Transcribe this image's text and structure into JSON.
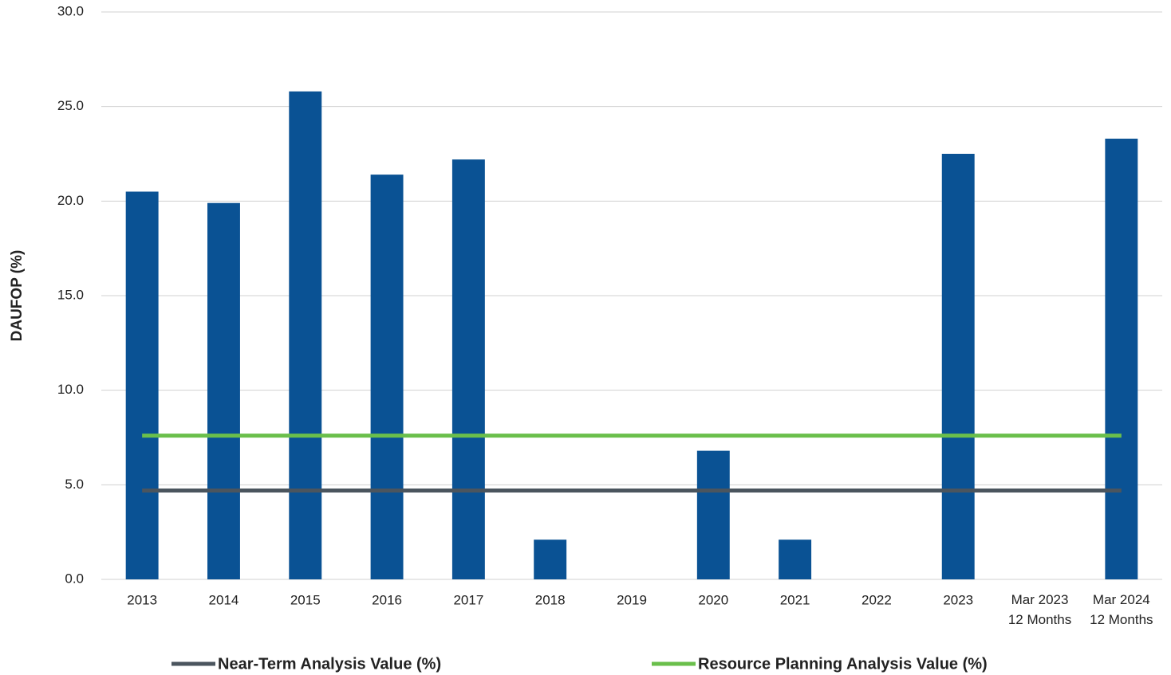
{
  "chart_data": {
    "type": "bar",
    "y_label": "DAUFOP (%)",
    "categories": [
      "2013",
      "2014",
      "2015",
      "2016",
      "2017",
      "2018",
      "2019",
      "2020",
      "2021",
      "2022",
      "2023",
      "Mar 2023\n12 Months",
      "Mar 2024\n12 Months"
    ],
    "values": [
      20.5,
      19.9,
      25.8,
      21.4,
      22.2,
      2.1,
      0,
      6.8,
      2.1,
      0,
      22.5,
      0,
      23.3
    ],
    "color": "#0a5294",
    "lines": [
      {
        "name": "Near-Term Analysis Value (%)",
        "color": "#4b555e",
        "value": 4.7
      },
      {
        "name": "Resource Planning Analysis Value (%)",
        "color": "#6abf4b",
        "value": 7.6
      }
    ],
    "ylim": [
      0,
      30
    ],
    "yticks": [
      {
        "value": 0,
        "label": "0.0"
      },
      {
        "value": 5,
        "label": "5.0"
      },
      {
        "value": 10,
        "label": "10.0"
      },
      {
        "value": 15,
        "label": "15.0"
      },
      {
        "value": 20,
        "label": "20.0"
      },
      {
        "value": 25,
        "label": "25.0"
      },
      {
        "value": 30,
        "label": "30.0"
      }
    ],
    "grid": true,
    "legend": "bottom"
  }
}
